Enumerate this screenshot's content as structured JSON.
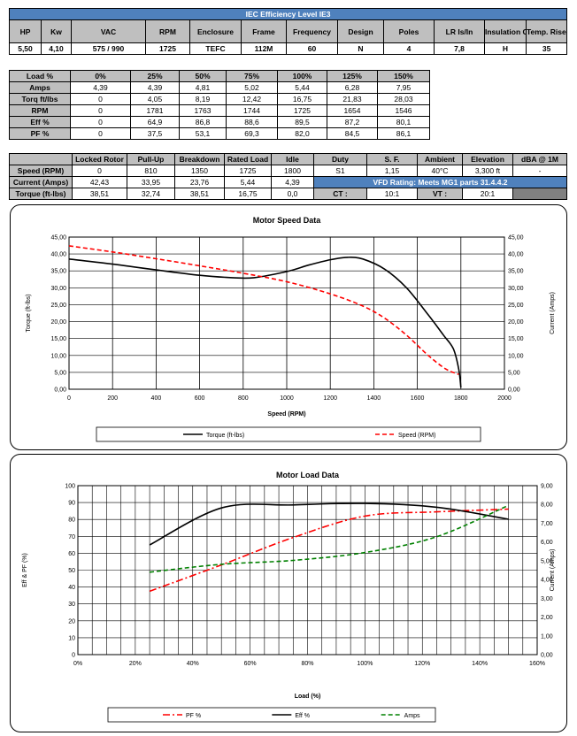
{
  "spec": {
    "title": "IEC Efficiency Level IE3",
    "headers": [
      "HP",
      "Kw",
      "VAC",
      "RPM",
      "Enclosure",
      "Frame",
      "Frequency",
      "Design",
      "Poles",
      "LR Is/In",
      "Insulation Class",
      "Temp. Rise °C"
    ],
    "values": [
      "5,50",
      "4,10",
      "575 / 990",
      "1725",
      "TEFC",
      "112M",
      "60",
      "N",
      "4",
      "7,8",
      "H",
      "35"
    ]
  },
  "load_table": {
    "headers": [
      "Load %",
      "0%",
      "25%",
      "50%",
      "75%",
      "100%",
      "125%",
      "150%"
    ],
    "rows": [
      [
        "Amps",
        "4,39",
        "4,39",
        "4,81",
        "5,02",
        "5,44",
        "6,28",
        "7,95"
      ],
      [
        "Torq ft/lbs",
        "0",
        "4,05",
        "8,19",
        "12,42",
        "16,75",
        "21,83",
        "28,03"
      ],
      [
        "RPM",
        "0",
        "1781",
        "1763",
        "1744",
        "1725",
        "1654",
        "1546"
      ],
      [
        "Eff %",
        "0",
        "64,9",
        "86,8",
        "88,6",
        "89,5",
        "87,2",
        "80,1"
      ],
      [
        "PF %",
        "0",
        "37,5",
        "53,1",
        "69,3",
        "82,0",
        "84,5",
        "86,1"
      ]
    ]
  },
  "perf_table": {
    "headers": [
      "",
      "Locked Rotor",
      "Pull-Up",
      "Breakdown",
      "Rated Load",
      "Idle",
      "Duty",
      "S. F.",
      "Ambient",
      "Elevation",
      "dBA @ 1M"
    ],
    "rows": [
      [
        "Speed (RPM)",
        "0",
        "810",
        "1350",
        "1725",
        "1800"
      ],
      [
        "Current (Amps)",
        "42,43",
        "33,95",
        "23,76",
        "5,44",
        "4,39"
      ],
      [
        "Torque (ft-lbs)",
        "38,51",
        "32,74",
        "38,51",
        "16,75",
        "0,0"
      ]
    ],
    "duty_values": [
      "S1",
      "1,15",
      "40°C",
      "3,300 ft",
      "-"
    ],
    "vfd_rating": "VFD Rating: Meets MG1 parts 31.4.4.2",
    "ct_label": "CT :",
    "ct_value": "10:1",
    "vt_label": "VT :",
    "vt_value": "20:1"
  },
  "chart_data": [
    {
      "type": "line",
      "title": "Motor Speed Data",
      "xlabel": "Speed (RPM)",
      "ylabel": "Torque (ft-lbs)",
      "y2label": "Current (Amps)",
      "xlim": [
        0,
        2000
      ],
      "ylim": [
        0,
        45
      ],
      "y2lim": [
        0,
        45
      ],
      "xticks": [
        "0",
        "200",
        "400",
        "600",
        "800",
        "1000",
        "1200",
        "1400",
        "1600",
        "1800",
        "2000"
      ],
      "yticks": [
        "0,00",
        "5,00",
        "10,00",
        "15,00",
        "20,00",
        "25,00",
        "30,00",
        "35,00",
        "40,00",
        "45,00"
      ],
      "series": [
        {
          "name": "Torque (ft-lbs)",
          "color": "#000000",
          "dash": "solid",
          "points": [
            [
              0,
              38.5
            ],
            [
              200,
              37.0
            ],
            [
              400,
              35.3
            ],
            [
              600,
              33.7
            ],
            [
              750,
              33.0
            ],
            [
              850,
              33.0
            ],
            [
              1000,
              34.8
            ],
            [
              1100,
              36.7
            ],
            [
              1200,
              38.3
            ],
            [
              1280,
              39.0
            ],
            [
              1350,
              38.5
            ],
            [
              1450,
              35.5
            ],
            [
              1550,
              30.0
            ],
            [
              1650,
              22.0
            ],
            [
              1720,
              16.0
            ],
            [
              1765,
              12.0
            ],
            [
              1790,
              6.0
            ],
            [
              1800,
              0.5
            ]
          ]
        },
        {
          "name": "Speed (RPM)",
          "color": "#ff0000",
          "dash": "dashed",
          "points": [
            [
              0,
              42.4
            ],
            [
              200,
              40.6
            ],
            [
              400,
              38.6
            ],
            [
              600,
              36.5
            ],
            [
              800,
              34.3
            ],
            [
              1000,
              31.8
            ],
            [
              1200,
              28.2
            ],
            [
              1350,
              24.6
            ],
            [
              1450,
              21.0
            ],
            [
              1550,
              16.0
            ],
            [
              1650,
              10.0
            ],
            [
              1730,
              6.0
            ],
            [
              1790,
              4.4
            ]
          ]
        }
      ]
    },
    {
      "type": "line",
      "title": "Motor Load Data",
      "xlabel": "Load (%)",
      "ylabel": "Eff & PF (%)",
      "y2label": "Current (Amps)",
      "xlim": [
        0,
        160
      ],
      "ylim": [
        0,
        100
      ],
      "y2lim": [
        0,
        9
      ],
      "xticks": [
        "0%",
        "20%",
        "40%",
        "60%",
        "80%",
        "100%",
        "120%",
        "140%",
        "160%"
      ],
      "yticks": [
        "0",
        "10",
        "20",
        "30",
        "40",
        "50",
        "60",
        "70",
        "80",
        "90",
        "100"
      ],
      "y2ticks": [
        "0,00",
        "1,00",
        "2,00",
        "3,00",
        "4,00",
        "5,00",
        "6,00",
        "7,00",
        "8,00",
        "9,00"
      ],
      "series": [
        {
          "name": "PF %",
          "axis": "left",
          "color": "#ff0000",
          "dash": "dashdot",
          "points": [
            [
              25,
              37.5
            ],
            [
              50,
              53.1
            ],
            [
              75,
              69.3
            ],
            [
              100,
              82.0
            ],
            [
              125,
              84.5
            ],
            [
              150,
              86.1
            ]
          ]
        },
        {
          "name": "Eff %",
          "axis": "left",
          "color": "#000000",
          "dash": "solid",
          "points": [
            [
              25,
              64.9
            ],
            [
              50,
              86.8
            ],
            [
              75,
              88.6
            ],
            [
              100,
              89.5
            ],
            [
              125,
              87.2
            ],
            [
              150,
              80.1
            ]
          ]
        },
        {
          "name": "Amps",
          "axis": "right",
          "color": "#008000",
          "dash": "dashed",
          "points": [
            [
              25,
              4.39
            ],
            [
              50,
              4.81
            ],
            [
              75,
              5.02
            ],
            [
              100,
              5.44
            ],
            [
              125,
              6.28
            ],
            [
              150,
              7.95
            ]
          ]
        }
      ]
    }
  ]
}
